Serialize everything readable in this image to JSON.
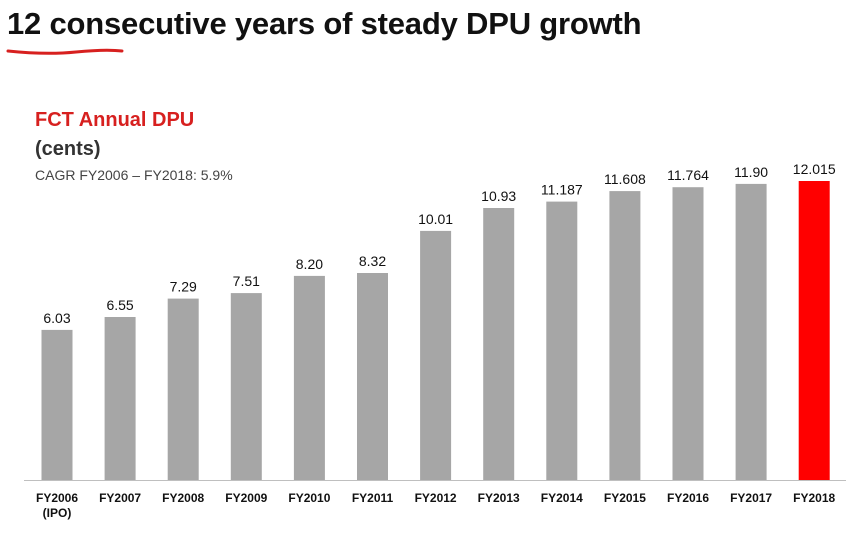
{
  "headline": "12 consecutive years of steady DPU growth",
  "colors": {
    "bar": "#a6a6a6",
    "highlight": "#ff0000",
    "accent": "#d7201f"
  },
  "chart_data": {
    "type": "bar",
    "title": "FCT Annual DPU",
    "unit_label": "(cents)",
    "annotation": "CAGR FY2006 – FY2018: 5.9%",
    "categories": [
      [
        "FY2006",
        "(IPO)"
      ],
      [
        "FY2007"
      ],
      [
        "FY2008"
      ],
      [
        "FY2009"
      ],
      [
        "FY2010"
      ],
      [
        "FY2011"
      ],
      [
        "FY2012"
      ],
      [
        "FY2013"
      ],
      [
        "FY2014"
      ],
      [
        "FY2015"
      ],
      [
        "FY2016"
      ],
      [
        "FY2017"
      ],
      [
        "FY2018"
      ]
    ],
    "values": [
      6.03,
      6.55,
      7.29,
      7.51,
      8.2,
      8.32,
      10.01,
      10.93,
      11.187,
      11.608,
      11.764,
      11.9,
      12.015
    ],
    "value_labels": [
      "6.03",
      "6.55",
      "7.29",
      "7.51",
      "8.20",
      "8.32",
      "10.01",
      "10.93",
      "11.187",
      "11.608",
      "11.764",
      "11.90",
      "12.015"
    ],
    "highlight_index": 12,
    "ylim": [
      0,
      12.015
    ],
    "grid": false,
    "legend": false
  }
}
